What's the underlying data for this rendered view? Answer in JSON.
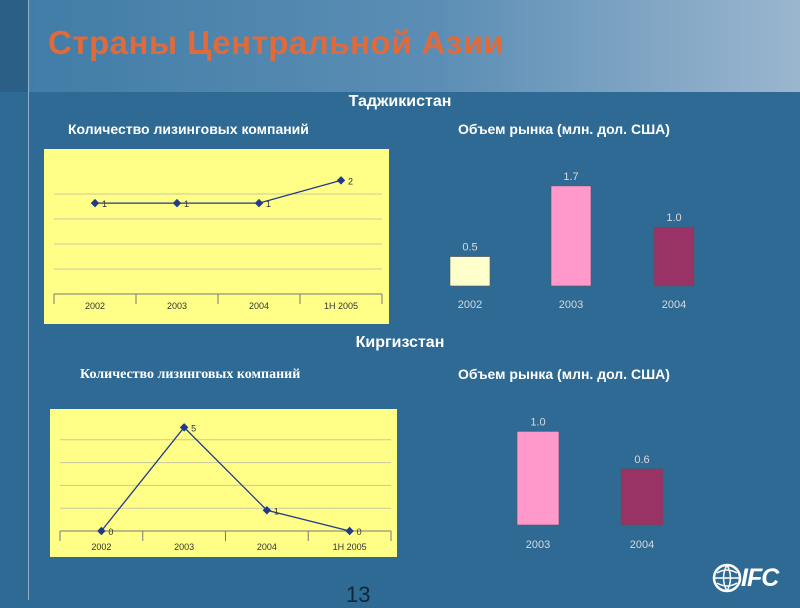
{
  "title": "Страны Центральной Азии",
  "page_number": "13",
  "logo_text": "IFC",
  "sections": [
    {
      "country": "Таджикистан",
      "left_label": "Количество лизинговых компаний",
      "right_label": "Объем рынка (млн. дол. США)"
    },
    {
      "country": "Киргизстан",
      "left_label": "Количество лизинговых компаний",
      "right_label": "Объем рынка (млн. дол. США)"
    }
  ],
  "chart_data": [
    {
      "type": "line",
      "categories": [
        "2002",
        "2003",
        "2004",
        "1H 2005"
      ],
      "values": [
        1,
        1,
        1,
        2
      ],
      "data_labels": [
        "1",
        "1",
        "1",
        "2"
      ],
      "ylim": [
        -3,
        2.5
      ],
      "grid": true,
      "panel_color": "#ffff88",
      "line_color": "#1f3b8a"
    },
    {
      "type": "bar",
      "categories": [
        "2002",
        "2003",
        "2004"
      ],
      "values": [
        0.5,
        1.7,
        1.0
      ],
      "data_labels": [
        "0.5",
        "1.7",
        "1.0"
      ],
      "colors": [
        "#ffffcc",
        "#ff99cc",
        "#993366"
      ],
      "ylim": [
        0,
        1.8
      ]
    },
    {
      "type": "line",
      "categories": [
        "2002",
        "2003",
        "2004",
        "1H 2005"
      ],
      "values": [
        0,
        5,
        1,
        0
      ],
      "data_labels": [
        "0",
        "5",
        "1",
        "0"
      ],
      "ylim": [
        0,
        5.5
      ],
      "grid": true,
      "panel_color": "#ffff88",
      "line_color": "#1f3b8a"
    },
    {
      "type": "bar",
      "categories": [
        "2003",
        "2004"
      ],
      "values": [
        1.0,
        0.6
      ],
      "data_labels": [
        "1.0",
        "0.6"
      ],
      "colors": [
        "#ff99cc",
        "#993366"
      ],
      "ylim": [
        0,
        1.1
      ]
    }
  ]
}
